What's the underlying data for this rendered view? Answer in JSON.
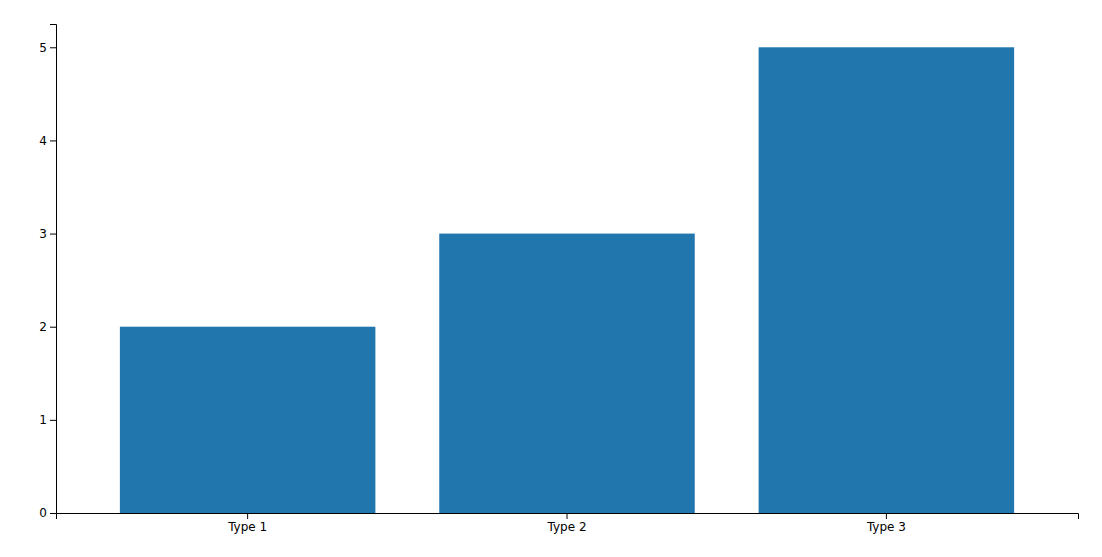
{
  "chart_data": {
    "type": "bar",
    "categories": [
      "Type 1",
      "Type 2",
      "Type 3"
    ],
    "values": [
      2,
      3,
      5
    ],
    "color": "#2176ae",
    "ylim": [
      0,
      5.25
    ],
    "yticks": [
      0,
      1,
      2,
      3,
      4,
      5
    ],
    "grid": false
  }
}
